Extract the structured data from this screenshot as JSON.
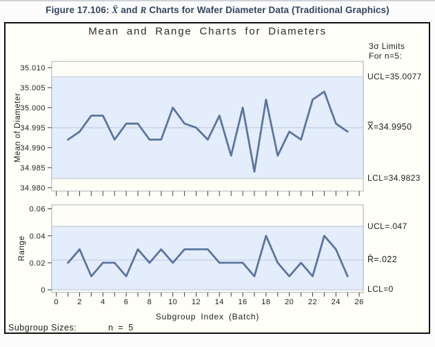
{
  "page": {
    "figure_title": {
      "prefix": "Figure 17.106: ",
      "xbar": "X̄",
      "mid": " and ",
      "r": "R",
      "suffix": " Charts for Wafer Diameter Data (Traditional Graphics)"
    }
  },
  "graph": {
    "title": "Mean and Range Charts for Diameters",
    "sigma_note_line1": "3σ Limits",
    "sigma_note_line2": "For n=5:",
    "xlabel": "Subgroup Index (Batch)",
    "footer_label": "Subgroup Sizes:",
    "footer_value": "n = 5"
  },
  "chart_data": [
    {
      "type": "line",
      "name": "mean-chart",
      "title": "Mean chart (X-bar) of wafer diameters",
      "ylabel": "Mean of Diameter",
      "x": [
        1,
        2,
        3,
        4,
        5,
        6,
        7,
        8,
        9,
        10,
        11,
        12,
        13,
        14,
        15,
        16,
        17,
        18,
        19,
        20,
        21,
        22,
        23,
        24,
        25
      ],
      "values": [
        34.992,
        34.994,
        34.998,
        34.998,
        34.992,
        34.996,
        34.996,
        34.992,
        34.992,
        35.0,
        34.996,
        34.995,
        34.992,
        34.998,
        34.988,
        35.0,
        34.984,
        35.002,
        34.988,
        34.994,
        34.992,
        35.002,
        35.004,
        34.996,
        34.994
      ],
      "ucl": 35.0077,
      "center": 34.995,
      "lcl": 34.9823,
      "labels": {
        "ucl": "UCL=35.0077",
        "center": "X̿=34.9950",
        "lcl": "LCL=34.9823"
      },
      "yticks": [
        "35.010",
        "35.005",
        "35.000",
        "34.995",
        "34.990",
        "34.985",
        "34.980"
      ],
      "ylim": [
        34.98,
        35.01
      ],
      "grid": false,
      "legend_position": "right"
    },
    {
      "type": "line",
      "name": "range-chart",
      "title": "Range chart of wafer diameters",
      "ylabel": "Range",
      "x": [
        1,
        2,
        3,
        4,
        5,
        6,
        7,
        8,
        9,
        10,
        11,
        12,
        13,
        14,
        15,
        16,
        17,
        18,
        19,
        20,
        21,
        22,
        23,
        24,
        25
      ],
      "values": [
        0.02,
        0.03,
        0.01,
        0.02,
        0.02,
        0.01,
        0.03,
        0.02,
        0.03,
        0.02,
        0.03,
        0.03,
        0.03,
        0.02,
        0.02,
        0.02,
        0.01,
        0.04,
        0.02,
        0.01,
        0.02,
        0.01,
        0.04,
        0.03,
        0.01
      ],
      "ucl": 0.047,
      "center": 0.022,
      "lcl": 0,
      "labels": {
        "ucl": "UCL=.047",
        "center": "R̄=.022",
        "lcl": "LCL=0"
      },
      "yticks": [
        "0.06",
        "0.04",
        "0.02",
        "0"
      ],
      "ylim": [
        0,
        0.06
      ],
      "xticks": [
        "0",
        "2",
        "4",
        "6",
        "8",
        "10",
        "12",
        "14",
        "16",
        "18",
        "20",
        "22",
        "24",
        "26"
      ],
      "xlim": [
        0,
        26
      ],
      "grid": false,
      "legend_position": "right"
    }
  ],
  "colors": {
    "series_line": "#5b74a0",
    "limit_band": "#e3edfb",
    "limit_line": "#c8cfe0",
    "center_line": "#bcc8da",
    "plot_frame": "#a8aeb9",
    "plot_background": "#fffef6",
    "tick": "#3a3a3a",
    "figure_title": "#33445f"
  }
}
